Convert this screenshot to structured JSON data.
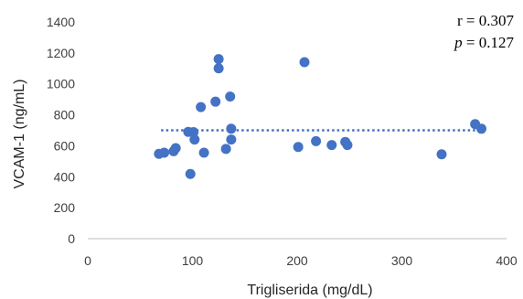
{
  "colors": {
    "marker": "#4472c4",
    "trendline": "#4472c4",
    "axis": "#bfbfbf"
  },
  "chart_data": {
    "type": "scatter",
    "xlabel": "Trigliserida (mg/dL)",
    "ylabel": "VCAM-1 (ng/mL)",
    "xlim": [
      0,
      400
    ],
    "ylim": [
      0,
      1400
    ],
    "x_ticks": [
      0,
      100,
      200,
      300,
      400
    ],
    "y_ticks": [
      0,
      200,
      400,
      600,
      800,
      1000,
      1200,
      1400
    ],
    "grid": false,
    "annotations": {
      "r_label": "r = 0.307",
      "p_symbol": "p",
      "p_rest": " = 0.127"
    },
    "trendline": {
      "style": "dotted",
      "y": 700,
      "x_range": [
        70,
        375
      ]
    },
    "series": [
      {
        "points": [
          {
            "x": 68,
            "y": 548
          },
          {
            "x": 73,
            "y": 555
          },
          {
            "x": 82,
            "y": 565
          },
          {
            "x": 84,
            "y": 585
          },
          {
            "x": 96,
            "y": 690
          },
          {
            "x": 98,
            "y": 418
          },
          {
            "x": 101,
            "y": 688
          },
          {
            "x": 102,
            "y": 640
          },
          {
            "x": 108,
            "y": 850
          },
          {
            "x": 111,
            "y": 555
          },
          {
            "x": 122,
            "y": 885
          },
          {
            "x": 125,
            "y": 1160
          },
          {
            "x": 125,
            "y": 1100
          },
          {
            "x": 132,
            "y": 580
          },
          {
            "x": 136,
            "y": 918
          },
          {
            "x": 137,
            "y": 710
          },
          {
            "x": 137,
            "y": 640
          },
          {
            "x": 201,
            "y": 592
          },
          {
            "x": 207,
            "y": 1140
          },
          {
            "x": 218,
            "y": 630
          },
          {
            "x": 233,
            "y": 605
          },
          {
            "x": 246,
            "y": 625
          },
          {
            "x": 248,
            "y": 605
          },
          {
            "x": 338,
            "y": 545
          },
          {
            "x": 370,
            "y": 740
          },
          {
            "x": 376,
            "y": 710
          }
        ]
      }
    ]
  }
}
